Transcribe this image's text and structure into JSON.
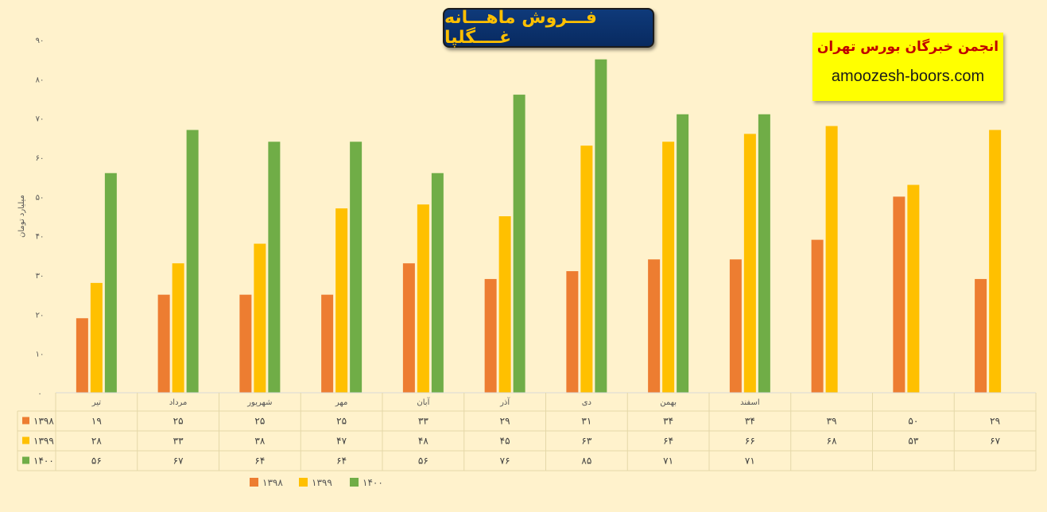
{
  "chart_data": {
    "type": "bar",
    "title": "فـــروش ماهـــانه غــــگلپا",
    "ylabel": "میلیارد تومان",
    "ylim": [
      0,
      90
    ],
    "yticks": [
      "۰",
      "۱۰",
      "۲۰",
      "۳۰",
      "۴۰",
      "۵۰",
      "۶۰",
      "۷۰",
      "۸۰",
      "۹۰"
    ],
    "grid": false,
    "legend_position": "bottom",
    "categories": [
      "تیر",
      "مرداد",
      "شهریور",
      "مهر",
      "آبان",
      "آذر",
      "دی",
      "بهمن",
      "اسفند",
      "",
      "",
      ""
    ],
    "series": [
      {
        "name": "۱۳۹۸",
        "color": "#ed7d31",
        "values": [
          19,
          25,
          25,
          25,
          33,
          29,
          31,
          34,
          34,
          39,
          50,
          29
        ],
        "labels": [
          "۱۹",
          "۲۵",
          "۲۵",
          "۲۵",
          "۳۳",
          "۲۹",
          "۳۱",
          "۳۴",
          "۳۴",
          "۳۹",
          "۵۰",
          "۲۹"
        ]
      },
      {
        "name": "۱۳۹۹",
        "color": "#ffc000",
        "values": [
          28,
          33,
          38,
          47,
          48,
          45,
          63,
          64,
          66,
          68,
          53,
          67
        ],
        "labels": [
          "۲۸",
          "۳۳",
          "۳۸",
          "۴۷",
          "۴۸",
          "۴۵",
          "۶۳",
          "۶۴",
          "۶۶",
          "۶۸",
          "۵۳",
          "۶۷"
        ]
      },
      {
        "name": "۱۴۰۰",
        "color": "#70ad47",
        "values": [
          56,
          67,
          64,
          64,
          56,
          76,
          85,
          71,
          71,
          null,
          null,
          null
        ],
        "labels": [
          "۵۶",
          "۶۷",
          "۶۴",
          "۶۴",
          "۵۶",
          "۷۶",
          "۸۵",
          "۷۱",
          "۷۱",
          "",
          "",
          ""
        ]
      }
    ]
  },
  "brand": {
    "name": "انجمن خبرگان بورس تهران",
    "url": "amoozesh-boors.com"
  }
}
